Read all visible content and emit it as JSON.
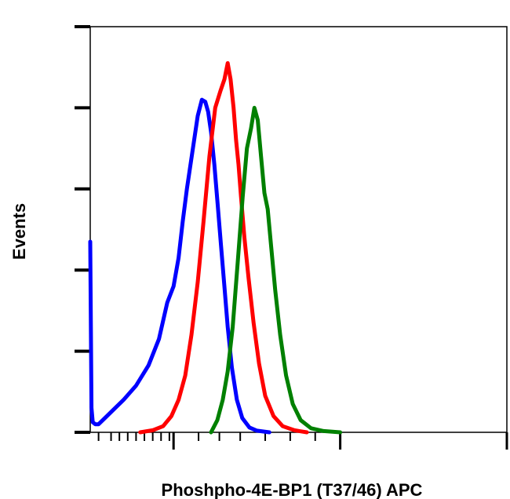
{
  "chart_data": {
    "type": "line",
    "xlabel": "Phoshpho-4E-BP1 (T37/46) APC",
    "ylabel": "Events",
    "xscale": "log",
    "xlim": [
      0,
      1
    ],
    "ylim": [
      0,
      1
    ],
    "grid": false,
    "legend": "none",
    "series": [
      {
        "color": "#0000ff",
        "x": [
          0.0,
          0.003,
          0.006,
          0.012,
          0.02,
          0.035,
          0.055,
          0.08,
          0.11,
          0.14,
          0.165,
          0.185,
          0.2,
          0.212,
          0.222,
          0.232,
          0.245,
          0.258,
          0.268,
          0.276,
          0.283,
          0.29,
          0.298,
          0.306,
          0.314,
          0.322,
          0.33,
          0.34,
          0.352,
          0.365,
          0.382,
          0.4,
          0.43
        ],
        "y": [
          0.47,
          0.06,
          0.025,
          0.02,
          0.02,
          0.035,
          0.055,
          0.08,
          0.115,
          0.165,
          0.23,
          0.32,
          0.36,
          0.43,
          0.52,
          0.6,
          0.69,
          0.78,
          0.82,
          0.815,
          0.79,
          0.74,
          0.66,
          0.56,
          0.46,
          0.36,
          0.26,
          0.16,
          0.08,
          0.035,
          0.012,
          0.004,
          0.0
        ]
      },
      {
        "color": "#ff0000",
        "x": [
          0.12,
          0.15,
          0.175,
          0.195,
          0.212,
          0.228,
          0.243,
          0.258,
          0.272,
          0.286,
          0.3,
          0.312,
          0.322,
          0.33,
          0.337,
          0.344,
          0.35,
          0.356,
          0.362,
          0.37,
          0.38,
          0.392,
          0.405,
          0.42,
          0.44,
          0.462,
          0.49,
          0.52
        ],
        "y": [
          0.0,
          0.005,
          0.015,
          0.04,
          0.08,
          0.14,
          0.24,
          0.37,
          0.52,
          0.68,
          0.8,
          0.84,
          0.87,
          0.91,
          0.87,
          0.8,
          0.72,
          0.66,
          0.58,
          0.48,
          0.38,
          0.27,
          0.17,
          0.09,
          0.04,
          0.015,
          0.005,
          0.0
        ]
      },
      {
        "color": "#008000",
        "x": [
          0.29,
          0.305,
          0.318,
          0.33,
          0.342,
          0.354,
          0.366,
          0.376,
          0.386,
          0.394,
          0.402,
          0.41,
          0.418,
          0.426,
          0.434,
          0.444,
          0.456,
          0.47,
          0.486,
          0.505,
          0.53,
          0.56,
          0.6
        ],
        "y": [
          0.0,
          0.03,
          0.08,
          0.15,
          0.26,
          0.42,
          0.58,
          0.7,
          0.75,
          0.8,
          0.77,
          0.68,
          0.59,
          0.55,
          0.46,
          0.35,
          0.24,
          0.14,
          0.07,
          0.03,
          0.01,
          0.003,
          0.0
        ]
      }
    ],
    "x_major_ticks": [
      0.2,
      0.6,
      1.0
    ],
    "x_minor_ticks": [
      0.02,
      0.05,
      0.07,
      0.09,
      0.11,
      0.13,
      0.15,
      0.17,
      0.19,
      0.26,
      0.31,
      0.36,
      0.42,
      0.48,
      0.54
    ],
    "y_ticks": [
      0.0,
      0.2,
      0.4,
      0.6,
      0.8,
      1.0
    ]
  }
}
